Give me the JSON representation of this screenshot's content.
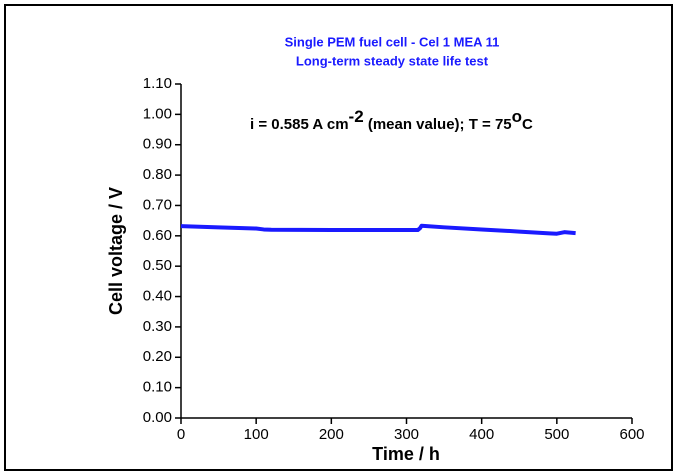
{
  "chart_data": {
    "type": "line",
    "title": "Single PEM fuel cell -  Cel 1 MEA 11",
    "subtitle": "Long-term steady state life test",
    "annotation": [
      "i = 0.585 A cm",
      "-2",
      " (mean value); T = 75",
      "o",
      "C"
    ],
    "x_label": "Time / h",
    "y_label": "Cell voltage / V",
    "xlim": [
      0,
      600
    ],
    "xticks": [
      0,
      100,
      200,
      300,
      400,
      500,
      600
    ],
    "ylim": [
      0,
      1.1
    ],
    "yticks": [
      {
        "value": 0,
        "label": "0.00"
      },
      {
        "value": 0.1,
        "label": "0.10"
      },
      {
        "value": 0.2,
        "label": "0.20"
      },
      {
        "value": 0.3,
        "label": "0.30"
      },
      {
        "value": 0.4,
        "label": "0.40"
      },
      {
        "value": 0.5,
        "label": "0.50"
      },
      {
        "value": 0.6,
        "label": "0.60"
      },
      {
        "value": 0.7,
        "label": "0.70"
      },
      {
        "value": 0.8,
        "label": "0.80"
      },
      {
        "value": 0.9,
        "label": "0.90"
      },
      {
        "value": 1.0,
        "label": "1.00"
      },
      {
        "value": 1.1,
        "label": "1.10"
      }
    ],
    "color": "#1a1aff",
    "x": [
      0,
      50,
      100,
      110,
      120,
      200,
      300,
      315,
      318,
      320,
      350,
      400,
      450,
      490,
      500,
      510,
      525
    ],
    "values": [
      0.632,
      0.628,
      0.624,
      0.621,
      0.62,
      0.619,
      0.619,
      0.619,
      0.625,
      0.633,
      0.628,
      0.621,
      0.614,
      0.608,
      0.607,
      0.612,
      0.609
    ]
  }
}
